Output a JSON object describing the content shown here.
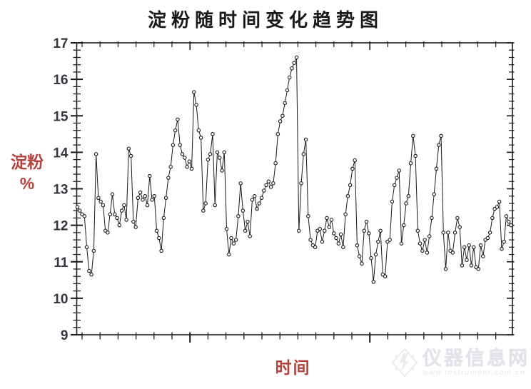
{
  "title": "淀粉随时间变化趋势图",
  "chart_data": {
    "type": "line",
    "title": "淀粉随时间变化趋势图",
    "xlabel": "时间",
    "ylabel": "淀粉 %",
    "ylabel_lines": [
      "淀粉",
      "%"
    ],
    "ylim": [
      9,
      17
    ],
    "y_major_ticks": [
      9,
      10,
      11,
      12,
      13,
      14,
      15,
      16,
      17
    ],
    "y_minor_step": 0.2,
    "x_tick_labels": [],
    "grid": false,
    "legend_position": "none",
    "marker": "open-circle",
    "colors": {
      "line": "#1a1a1a",
      "marker_fill": "#ffffff",
      "axis": "#1a1a1a",
      "axis_label": "#b5413c",
      "tick_label": "#35353d",
      "title": "#1a1a1a"
    },
    "series": [
      {
        "name": "淀粉%",
        "values": [
          12.5,
          12.4,
          12.3,
          12.25,
          11.4,
          10.75,
          10.65,
          11.3,
          13.95,
          12.75,
          12.65,
          12.55,
          11.85,
          11.8,
          12.3,
          12.85,
          12.3,
          12.2,
          12.0,
          12.4,
          12.55,
          12.15,
          14.1,
          13.9,
          12.1,
          11.95,
          12.75,
          12.9,
          12.7,
          12.8,
          12.55,
          13.35,
          12.7,
          12.8,
          11.85,
          11.65,
          11.3,
          12.2,
          12.75,
          13.3,
          13.6,
          14.2,
          14.6,
          14.9,
          14.2,
          13.95,
          13.85,
          13.6,
          13.75,
          13.55,
          15.65,
          15.3,
          14.6,
          14.4,
          12.4,
          12.6,
          13.8,
          13.95,
          14.5,
          12.55,
          14.0,
          13.85,
          13.5,
          14.0,
          11.9,
          11.2,
          11.65,
          11.5,
          11.6,
          12.25,
          13.15,
          12.4,
          11.85,
          12.1,
          11.7,
          12.7,
          12.8,
          12.45,
          12.6,
          12.75,
          12.95,
          13.1,
          13.2,
          13.05,
          13.15,
          13.7,
          14.5,
          14.85,
          15.0,
          15.35,
          15.7,
          16.05,
          16.3,
          16.45,
          16.6,
          11.85,
          13.15,
          13.95,
          14.35,
          12.25,
          11.6,
          11.45,
          11.4,
          11.85,
          11.9,
          11.55,
          11.85,
          12.2,
          11.95,
          12.15,
          11.78,
          11.65,
          11.5,
          11.75,
          11.4,
          12.3,
          12.8,
          13.1,
          13.55,
          13.78,
          11.45,
          11.15,
          10.95,
          11.85,
          12.1,
          11.78,
          11.1,
          10.45,
          11.2,
          11.55,
          11.85,
          10.65,
          10.6,
          11.55,
          11.6,
          12.65,
          13.1,
          13.3,
          13.5,
          11.5,
          12.0,
          12.6,
          12.8,
          13.7,
          14.45,
          13.9,
          11.85,
          11.5,
          11.3,
          11.6,
          11.25,
          11.7,
          12.2,
          12.85,
          13.55,
          14.2,
          14.45,
          11.8,
          10.8,
          11.8,
          11.3,
          11.25,
          11.8,
          12.2,
          11.95,
          10.9,
          11.4,
          11.05,
          11.45,
          10.9,
          11.4,
          10.85,
          10.8,
          11.45,
          11.15,
          11.6,
          11.65,
          11.8,
          12.2,
          12.45,
          12.5,
          12.65,
          11.35,
          11.55,
          12.25,
          12.1,
          12.0
        ]
      }
    ]
  },
  "watermark": {
    "name": "仪器信息网",
    "url": "www.instrument.com.cn",
    "color": "#e2e2e8"
  }
}
